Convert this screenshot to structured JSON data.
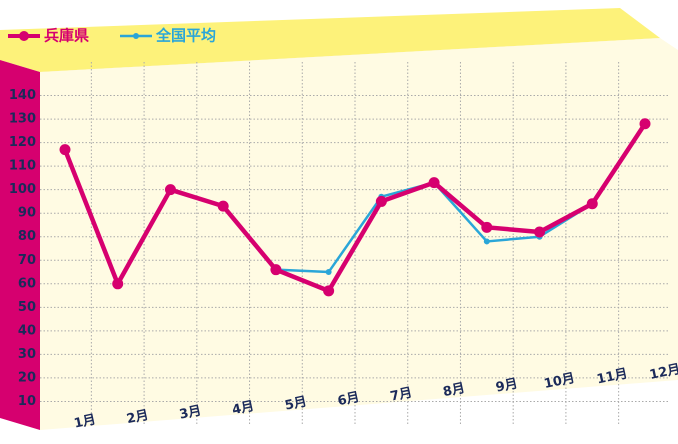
{
  "chart_data": {
    "type": "line",
    "categories": [
      "1月",
      "2月",
      "3月",
      "4月",
      "5月",
      "6月",
      "7月",
      "8月",
      "9月",
      "10月",
      "11月",
      "12月"
    ],
    "series": [
      {
        "name": "兵庫県",
        "color": "#d6006f",
        "values": [
          117,
          60,
          100,
          93,
          66,
          57,
          95,
          103,
          84,
          82,
          94,
          128
        ]
      },
      {
        "name": "全国平均",
        "color": "#2aa6d8",
        "values": [
          117,
          60,
          100,
          93,
          66,
          65,
          97,
          103,
          78,
          80,
          94,
          128
        ]
      }
    ],
    "ylim": [
      0,
      150
    ],
    "yticks": [
      10,
      20,
      30,
      40,
      50,
      60,
      70,
      80,
      90,
      100,
      110,
      120,
      130,
      140
    ],
    "grid": true
  }
}
